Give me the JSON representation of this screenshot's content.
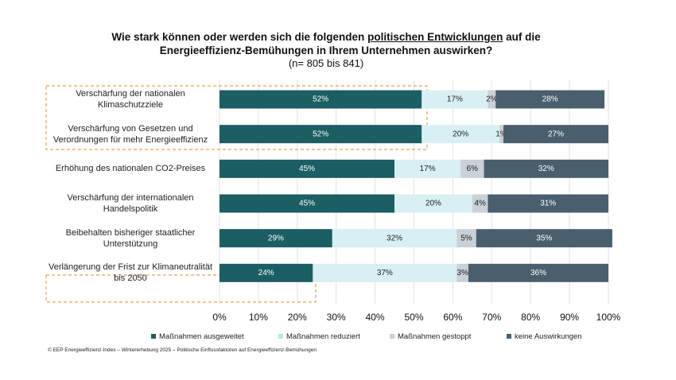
{
  "chart_data": {
    "type": "stacked_barh",
    "title_pre": "Wie stark können oder werden sich die folgenden",
    "title_em": "politischen Entwicklungen",
    "title_post": "auf die Energieeffizienz-Bemühungen in Ihrem Unternehmen auswirken?",
    "subtitle": "(n= 805 bis 841)",
    "categories": [
      "Verschärfung der nationalen Klimaschutzziele",
      "Verschärfung von Gesetzen und Verordnungen für mehr Energieeffizienz",
      "Erhöhung des nationalen CO2-Preises",
      "Verschärfung der internationalen Handelspolitik",
      "Beibehalten bisheriger staatlicher Unterstützung",
      "Verlängerung der Frist zur Klimaneutralität bis 2050"
    ],
    "series": [
      {
        "name": "Maßnahmen ausgeweitet",
        "color": "#1b5e63",
        "values": [
          52,
          52,
          45,
          45,
          29,
          24
        ],
        "value_labels": [
          "52%",
          "52%",
          "45%",
          "45%",
          "29%",
          "24%"
        ]
      },
      {
        "name": "Maßnahmen reduziert",
        "color": "#d8f0f3",
        "values": [
          17,
          20,
          17,
          20,
          32,
          37
        ],
        "value_labels": [
          "17%",
          "20%",
          "17%",
          "20%",
          "32%",
          "37%"
        ]
      },
      {
        "name": "Maßnahmen gestoppt",
        "color": "#c9d1d6",
        "values": [
          2,
          1,
          6,
          4,
          5,
          3
        ],
        "value_labels": [
          "2%",
          "1%",
          "6%",
          "4%",
          "5%",
          "3%"
        ]
      },
      {
        "name": "keine Auswirkungen",
        "color": "#4a5f6e",
        "values": [
          28,
          27,
          32,
          31,
          35,
          36
        ],
        "value_labels": [
          "28%",
          "27%",
          "32%",
          "31%",
          "35%",
          "36%"
        ]
      }
    ],
    "xlim": [
      0,
      100
    ],
    "xticks": [
      {
        "value": 0,
        "label": "0%"
      },
      {
        "value": 10,
        "label": "10%"
      },
      {
        "value": 20,
        "label": "20%"
      },
      {
        "value": 30,
        "label": "30%"
      },
      {
        "value": 40,
        "label": "40%"
      },
      {
        "value": 50,
        "label": "50%"
      },
      {
        "value": 60,
        "label": "60%"
      },
      {
        "value": 70,
        "label": "70%"
      },
      {
        "value": 80,
        "label": "80%"
      },
      {
        "value": 90,
        "label": "90%"
      },
      {
        "value": 100,
        "label": "100%"
      }
    ],
    "grid": true,
    "footer": "© EEP Energieeffizienz-Index – Wintererhebung 2025 – Politische Einflussfaktoren auf Energieeffizienz-Bemühungen"
  }
}
